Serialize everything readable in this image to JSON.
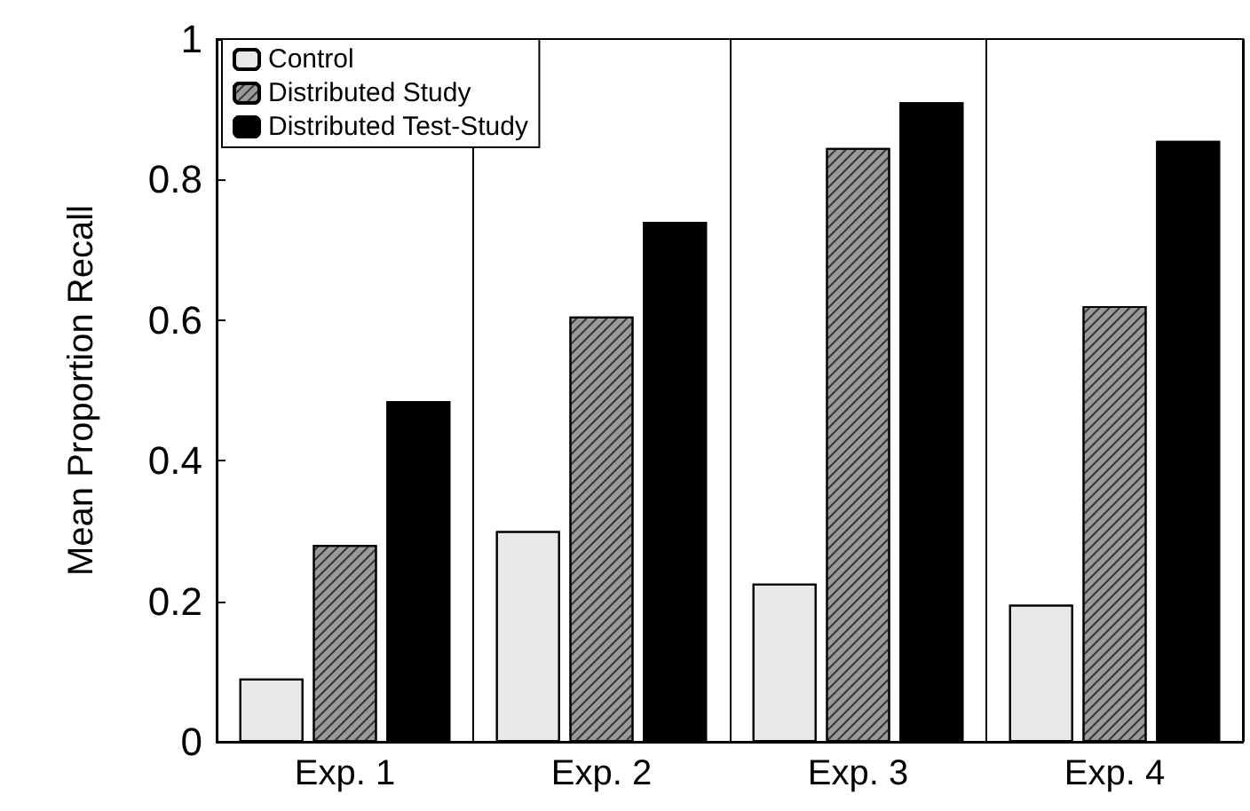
{
  "chart_data": {
    "type": "bar",
    "ylabel": "Mean Proportion Recall",
    "categories": [
      "Exp. 1",
      "Exp. 2",
      "Exp. 3",
      "Exp. 4"
    ],
    "series": [
      {
        "name": "Control",
        "color": "#e8e8e8",
        "values": [
          0.09,
          0.3,
          0.225,
          0.195
        ]
      },
      {
        "name": "Distributed Study",
        "color": "#9a9a9a",
        "values": [
          0.28,
          0.605,
          0.845,
          0.62
        ]
      },
      {
        "name": "Distributed Test-Study",
        "color": "#000000",
        "values": [
          0.485,
          0.74,
          0.91,
          0.855
        ]
      }
    ],
    "ylim": [
      0,
      1
    ],
    "yticks": [
      0,
      0.2,
      0.4,
      0.6,
      0.8,
      1
    ],
    "grid": "x",
    "legend": "top left"
  }
}
